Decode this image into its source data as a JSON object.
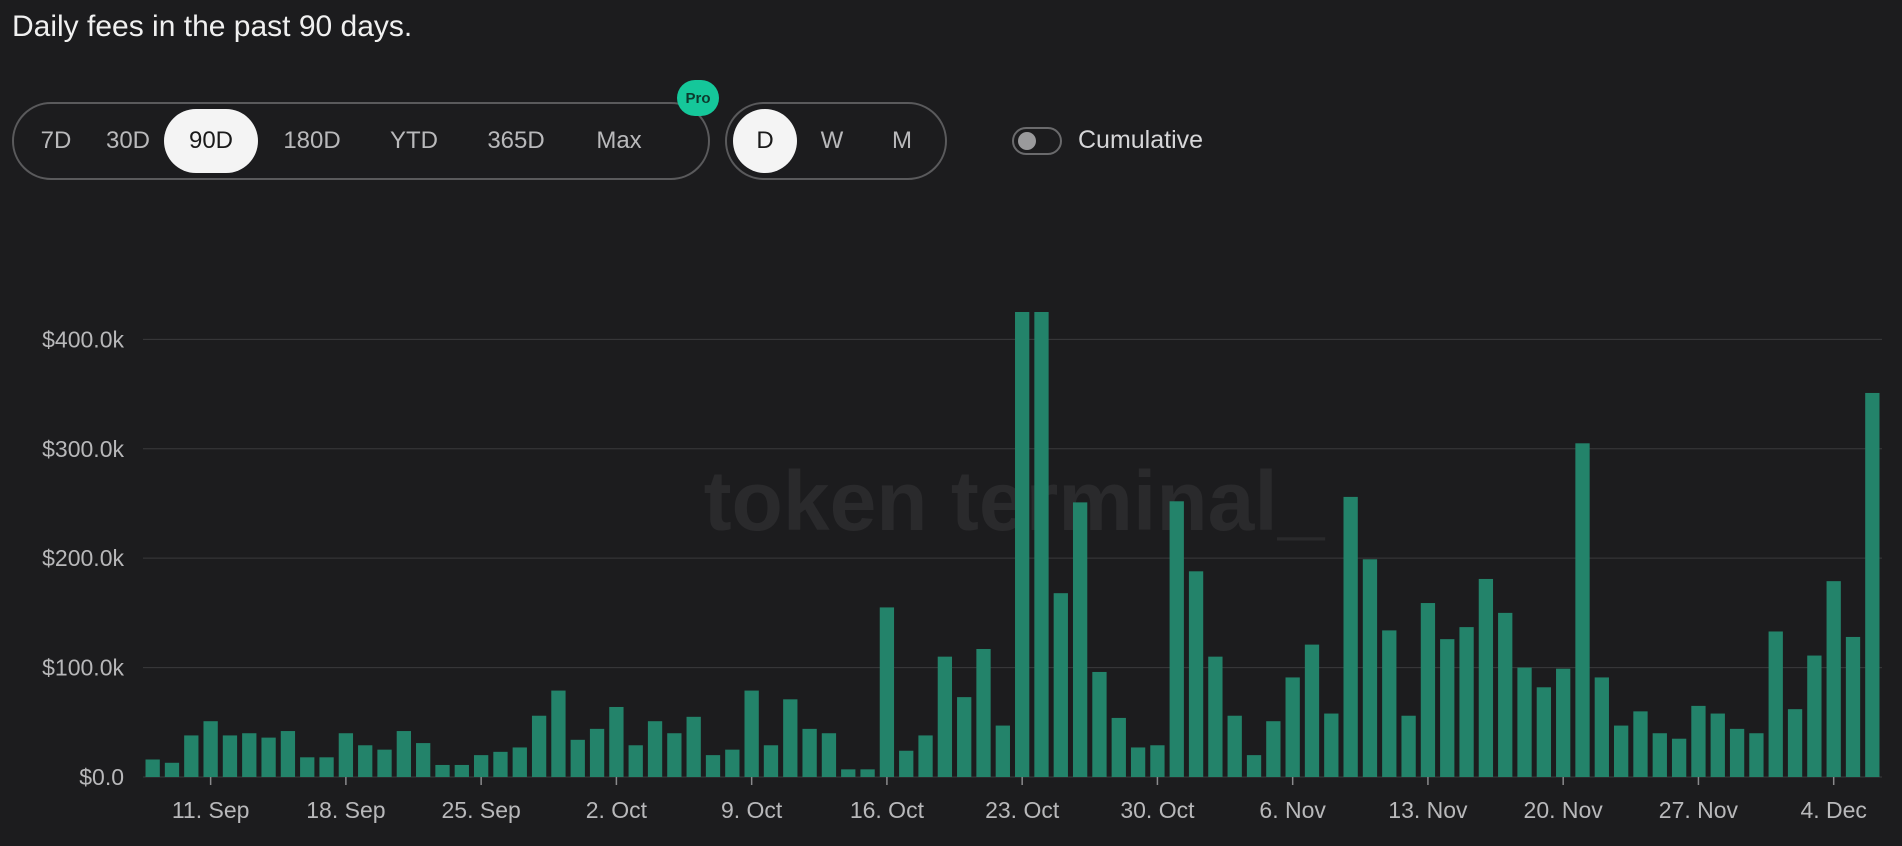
{
  "header": {
    "title": "Daily fees in the past 90 days."
  },
  "controls": {
    "ranges": [
      "7D",
      "30D",
      "90D",
      "180D",
      "YTD",
      "365D",
      "Max"
    ],
    "active_range": "90D",
    "pro_badge": "Pro",
    "granularity": [
      "D",
      "W",
      "M"
    ],
    "active_granularity": "D",
    "cumulative_label": "Cumulative",
    "cumulative_on": false
  },
  "colors": {
    "bar": "#23836a",
    "grid": "#3a3a3c",
    "background": "#1c1c1e",
    "pro": "#15c79a"
  },
  "chart_data": {
    "type": "bar",
    "watermark": "token terminal_",
    "yticks": [
      {
        "value": 0,
        "label": "$0.0"
      },
      {
        "value": 100,
        "label": "$100.0k"
      },
      {
        "value": 200,
        "label": "$200.0k"
      },
      {
        "value": 300,
        "label": "$300.0k"
      },
      {
        "value": 400,
        "label": "$400.0k"
      }
    ],
    "ylim": [
      0,
      425
    ],
    "y_unit": "thousand USD",
    "grid": true,
    "xticks": [
      {
        "index": 3,
        "label": "11. Sep"
      },
      {
        "index": 10,
        "label": "18. Sep"
      },
      {
        "index": 17,
        "label": "25. Sep"
      },
      {
        "index": 24,
        "label": "2. Oct"
      },
      {
        "index": 31,
        "label": "9. Oct"
      },
      {
        "index": 38,
        "label": "16. Oct"
      },
      {
        "index": 45,
        "label": "23. Oct"
      },
      {
        "index": 52,
        "label": "30. Oct"
      },
      {
        "index": 59,
        "label": "6. Nov"
      },
      {
        "index": 66,
        "label": "13. Nov"
      },
      {
        "index": 73,
        "label": "20. Nov"
      },
      {
        "index": 80,
        "label": "27. Nov"
      },
      {
        "index": 87,
        "label": "4. Dec"
      }
    ],
    "values": [
      16,
      13,
      38,
      51,
      38,
      40,
      36,
      42,
      18,
      18,
      40,
      29,
      25,
      42,
      31,
      11,
      11,
      20,
      23,
      27,
      56,
      79,
      34,
      44,
      64,
      29,
      51,
      40,
      55,
      20,
      25,
      79,
      29,
      71,
      44,
      40,
      7,
      7,
      155,
      24,
      38,
      110,
      73,
      117,
      47,
      425,
      425,
      168,
      251,
      96,
      54,
      27,
      29,
      252,
      188,
      110,
      56,
      20,
      51,
      91,
      121,
      58,
      256,
      199,
      134,
      56,
      159,
      126,
      137,
      181,
      150,
      100,
      82,
      99,
      305,
      91,
      47,
      60,
      40,
      35,
      65,
      58,
      44,
      40,
      133,
      62,
      111,
      179,
      128,
      351
    ]
  }
}
